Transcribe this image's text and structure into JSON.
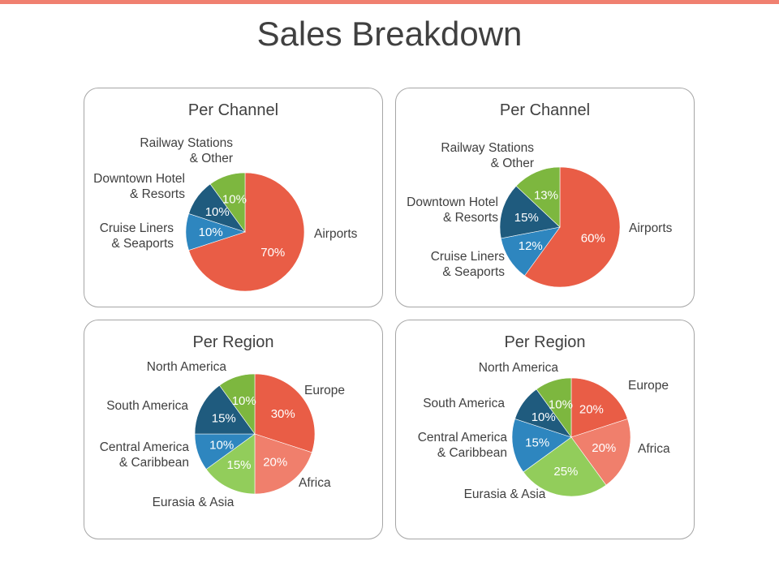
{
  "title": "Sales Breakdown",
  "colors": {
    "top_bar": "#f08070",
    "red": "#e95d46",
    "salmon": "#f07f6c",
    "light_green": "#92cd5b",
    "green": "#7db73f",
    "dark_blue": "#1f5b7e",
    "blue": "#2e86bf"
  },
  "chart_data": [
    {
      "type": "pie",
      "title": "Per Channel",
      "slices": [
        {
          "category": "Airports",
          "value": 70,
          "value_label": "70%",
          "color": "#e95d46"
        },
        {
          "category": "Cruise Liners\n& Seaports",
          "value": 10,
          "value_label": "10%",
          "color": "#2e86bf"
        },
        {
          "category": "Downtown Hotel\n& Resorts",
          "value": 10,
          "value_label": "10%",
          "color": "#1f5b7e"
        },
        {
          "category": "Railway Stations\n& Other",
          "value": 10,
          "value_label": "10%",
          "color": "#7db73f"
        }
      ]
    },
    {
      "type": "pie",
      "title": "Per Channel",
      "slices": [
        {
          "category": "Airports",
          "value": 60,
          "value_label": "60%",
          "color": "#e95d46"
        },
        {
          "category": "Cruise Liners\n& Seaports",
          "value": 12,
          "value_label": "12%",
          "color": "#2e86bf"
        },
        {
          "category": "Downtown Hotel\n& Resorts",
          "value": 15,
          "value_label": "15%",
          "color": "#1f5b7e"
        },
        {
          "category": "Railway Stations\n& Other",
          "value": 13,
          "value_label": "13%",
          "color": "#7db73f"
        }
      ]
    },
    {
      "type": "pie",
      "title": "Per Region",
      "slices": [
        {
          "category": "Europe",
          "value": 30,
          "value_label": "30%",
          "color": "#e95d46"
        },
        {
          "category": "Africa",
          "value": 20,
          "value_label": "20%",
          "color": "#f07f6c"
        },
        {
          "category": "Eurasia & Asia",
          "value": 15,
          "value_label": "15%",
          "color": "#92cd5b"
        },
        {
          "category": "Central America\n& Caribbean",
          "value": 10,
          "value_label": "10%",
          "color": "#2e86bf"
        },
        {
          "category": "South America",
          "value": 15,
          "value_label": "15%",
          "color": "#1f5b7e"
        },
        {
          "category": "North America",
          "value": 10,
          "value_label": "10%",
          "color": "#7db73f"
        }
      ]
    },
    {
      "type": "pie",
      "title": "Per Region",
      "slices": [
        {
          "category": "Europe",
          "value": 20,
          "value_label": "20%",
          "color": "#e95d46"
        },
        {
          "category": "Africa",
          "value": 20,
          "value_label": "20%",
          "color": "#f07f6c"
        },
        {
          "category": "Eurasia & Asia",
          "value": 25,
          "value_label": "25%",
          "color": "#92cd5b"
        },
        {
          "category": "Central America\n& Caribbean",
          "value": 15,
          "value_label": "15%",
          "color": "#2e86bf"
        },
        {
          "category": "South America",
          "value": 10,
          "value_label": "10%",
          "color": "#1f5b7e"
        },
        {
          "category": "North America",
          "value": 10,
          "value_label": "10%",
          "color": "#7db73f"
        }
      ]
    }
  ]
}
